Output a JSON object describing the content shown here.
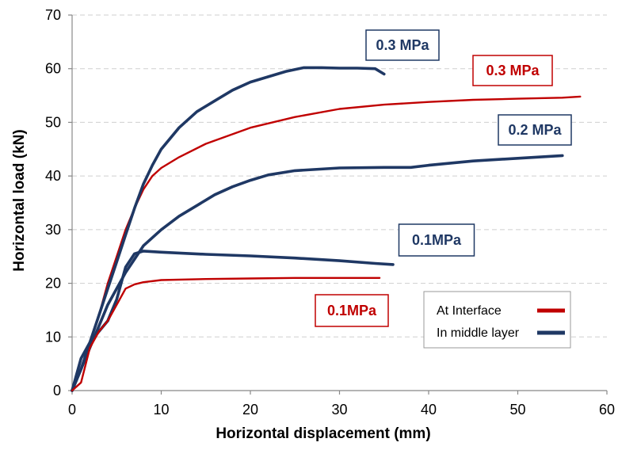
{
  "chart_data": {
    "type": "line",
    "xlabel": "Horizontal displacement (mm)",
    "ylabel": "Horizontal load (kN)",
    "xlim": [
      0,
      60
    ],
    "ylim": [
      0,
      70
    ],
    "x_ticks": [
      0,
      10,
      20,
      30,
      40,
      50,
      60
    ],
    "y_ticks": [
      0,
      10,
      20,
      30,
      40,
      50,
      60,
      70
    ],
    "grid": "horizontal dashed",
    "legend_placement": "bottom-right",
    "legend": [
      {
        "label": "At Interface",
        "color": "#c00000"
      },
      {
        "label": "In middle layer",
        "color": "#1f3864"
      }
    ],
    "series": [
      {
        "name": "At Interface",
        "pressure": "0.3 MPa",
        "color": "#c00000",
        "points": [
          [
            0,
            0
          ],
          [
            1,
            4
          ],
          [
            2,
            9
          ],
          [
            3,
            14
          ],
          [
            4,
            20
          ],
          [
            5,
            25
          ],
          [
            6,
            30
          ],
          [
            7,
            34
          ],
          [
            8,
            37.5
          ],
          [
            9,
            40
          ],
          [
            10,
            41.5
          ],
          [
            12,
            43.5
          ],
          [
            15,
            46
          ],
          [
            20,
            49
          ],
          [
            25,
            51
          ],
          [
            30,
            52.5
          ],
          [
            35,
            53.3
          ],
          [
            40,
            53.8
          ],
          [
            45,
            54.2
          ],
          [
            50,
            54.4
          ],
          [
            55,
            54.6
          ],
          [
            57,
            54.8
          ]
        ]
      },
      {
        "name": "In middle layer",
        "pressure": "0.3 MPa",
        "color": "#1f3864",
        "points": [
          [
            0,
            0
          ],
          [
            1,
            4
          ],
          [
            2,
            9
          ],
          [
            3,
            14
          ],
          [
            4,
            19
          ],
          [
            5,
            24
          ],
          [
            6,
            29
          ],
          [
            7,
            34
          ],
          [
            8,
            38.5
          ],
          [
            9,
            42
          ],
          [
            10,
            45
          ],
          [
            12,
            49
          ],
          [
            14,
            52
          ],
          [
            16,
            54
          ],
          [
            18,
            56
          ],
          [
            20,
            57.5
          ],
          [
            22,
            58.5
          ],
          [
            24,
            59.5
          ],
          [
            26,
            60.2
          ],
          [
            28,
            60.2
          ],
          [
            30,
            60.1
          ],
          [
            32,
            60.1
          ],
          [
            34,
            60
          ],
          [
            35,
            59
          ]
        ]
      },
      {
        "name": "In middle layer",
        "pressure": "0.2 MPa",
        "color": "#1f3864",
        "points": [
          [
            0,
            0
          ],
          [
            1,
            4
          ],
          [
            2,
            8
          ],
          [
            3,
            12
          ],
          [
            4,
            16
          ],
          [
            5,
            19
          ],
          [
            6,
            22
          ],
          [
            7,
            24.5
          ],
          [
            8,
            27
          ],
          [
            10,
            30
          ],
          [
            12,
            32.5
          ],
          [
            14,
            34.5
          ],
          [
            16,
            36.5
          ],
          [
            18,
            38
          ],
          [
            20,
            39.2
          ],
          [
            22,
            40.2
          ],
          [
            25,
            41
          ],
          [
            30,
            41.5
          ],
          [
            35,
            41.6
          ],
          [
            38,
            41.6
          ],
          [
            40,
            42
          ],
          [
            45,
            42.8
          ],
          [
            50,
            43.3
          ],
          [
            55,
            43.8
          ]
        ]
      },
      {
        "name": "In middle layer",
        "pressure": "0.1MPa",
        "color": "#1f3864",
        "points": [
          [
            0,
            0
          ],
          [
            1,
            6
          ],
          [
            2,
            9
          ],
          [
            3,
            11
          ],
          [
            4,
            13
          ],
          [
            5,
            17
          ],
          [
            6,
            23
          ],
          [
            7,
            25.5
          ],
          [
            8,
            26
          ],
          [
            10,
            25.8
          ],
          [
            15,
            25.4
          ],
          [
            20,
            25.1
          ],
          [
            25,
            24.7
          ],
          [
            30,
            24.2
          ],
          [
            34,
            23.7
          ],
          [
            36,
            23.5
          ]
        ]
      },
      {
        "name": "At Interface",
        "pressure": "0.1MPa",
        "color": "#c00000",
        "points": [
          [
            0,
            0
          ],
          [
            1,
            1.5
          ],
          [
            2,
            8
          ],
          [
            3,
            11
          ],
          [
            4,
            13
          ],
          [
            5,
            16
          ],
          [
            6,
            19
          ],
          [
            7,
            19.8
          ],
          [
            8,
            20.2
          ],
          [
            10,
            20.6
          ],
          [
            15,
            20.8
          ],
          [
            20,
            20.9
          ],
          [
            25,
            21
          ],
          [
            30,
            21
          ],
          [
            34.5,
            21
          ]
        ]
      }
    ],
    "annotations": [
      {
        "text": "0.3 MPa",
        "series": 1,
        "color": "#1f3864"
      },
      {
        "text": "0.3 MPa",
        "series": 0,
        "color": "#c00000"
      },
      {
        "text": "0.2 MPa",
        "series": 2,
        "color": "#1f3864"
      },
      {
        "text": "0.1MPa",
        "series": 3,
        "color": "#1f3864"
      },
      {
        "text": "0.1MPa",
        "series": 4,
        "color": "#c00000"
      }
    ]
  }
}
